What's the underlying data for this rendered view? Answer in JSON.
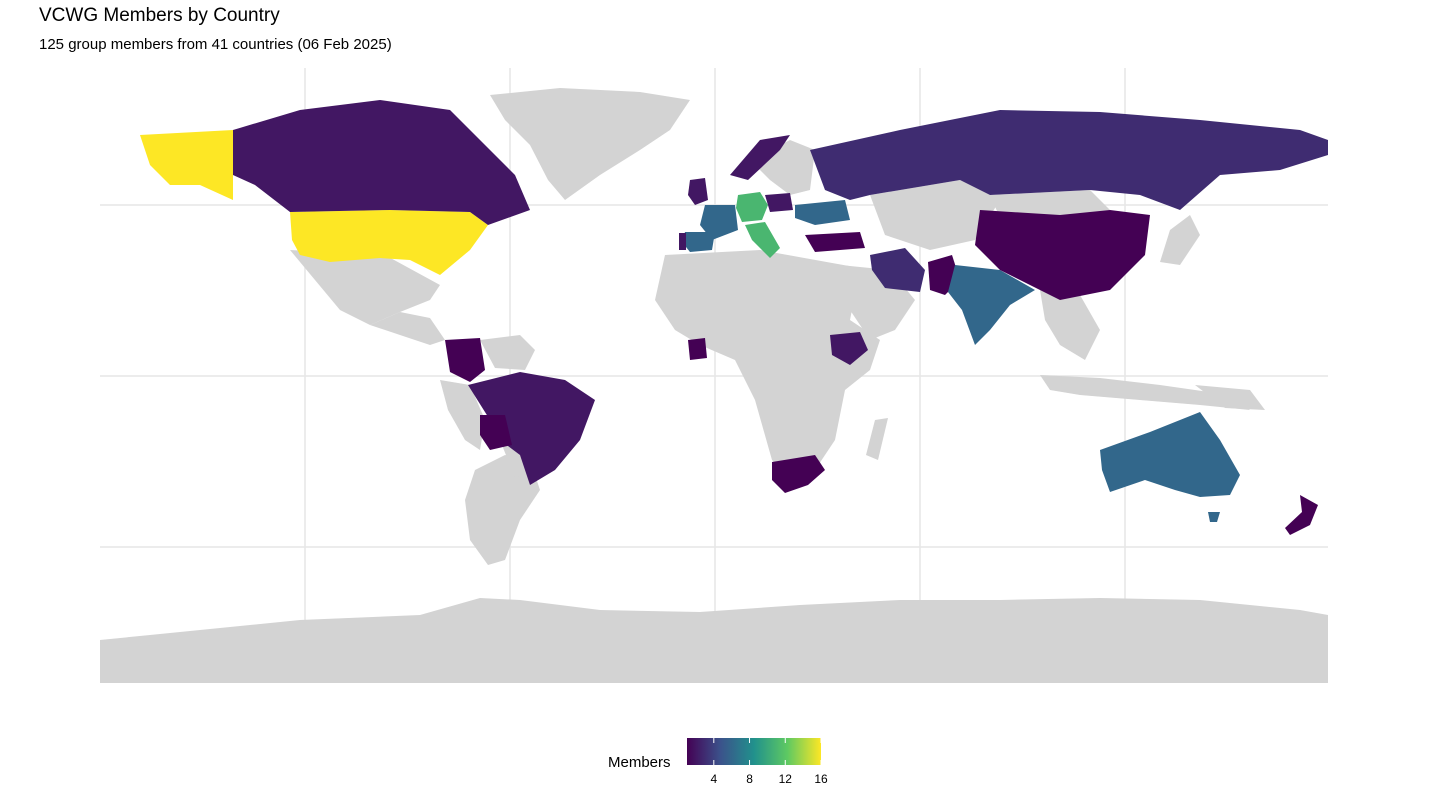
{
  "header": {
    "title": "VCWG Members by Country",
    "subtitle": "125 group members from 41 countries (06 Feb 2025)"
  },
  "legend": {
    "title": "Members",
    "ticks": [
      "4",
      "8",
      "12",
      "16"
    ],
    "range": [
      1,
      16
    ],
    "palette": "viridis",
    "colors": [
      "#440154",
      "#3b528b",
      "#21918c",
      "#5ec962",
      "#fde725"
    ]
  },
  "map_style": {
    "land_no_data": "#d3d3d3",
    "background": "#ffffff",
    "grid": "#e6e6e6",
    "grid_visible": true
  },
  "countries": [
    {
      "name": "United States",
      "members": 16
    },
    {
      "name": "Canada",
      "members": 2
    },
    {
      "name": "Germany",
      "members": 11
    },
    {
      "name": "Italy",
      "members": 11
    },
    {
      "name": "France",
      "members": 6
    },
    {
      "name": "Spain",
      "members": 6
    },
    {
      "name": "Australia",
      "members": 6
    },
    {
      "name": "India",
      "members": 6
    },
    {
      "name": "Ukraine",
      "members": 6
    },
    {
      "name": "Russia",
      "members": 3
    },
    {
      "name": "Brazil",
      "members": 2
    },
    {
      "name": "Iran",
      "members": 3
    },
    {
      "name": "Ethiopia",
      "members": 2
    },
    {
      "name": "China",
      "members": 1
    },
    {
      "name": "Colombia",
      "members": 1
    },
    {
      "name": "Bolivia",
      "members": 1
    },
    {
      "name": "South Africa",
      "members": 1
    },
    {
      "name": "New Zealand",
      "members": 1
    },
    {
      "name": "Turkey",
      "members": 1
    },
    {
      "name": "Pakistan",
      "members": 1
    },
    {
      "name": "Côte d'Ivoire",
      "members": 1
    },
    {
      "name": "Norway",
      "members": 2
    },
    {
      "name": "United Kingdom",
      "members": 2
    },
    {
      "name": "Poland",
      "members": 2
    },
    {
      "name": "Portugal",
      "members": 2
    }
  ]
}
